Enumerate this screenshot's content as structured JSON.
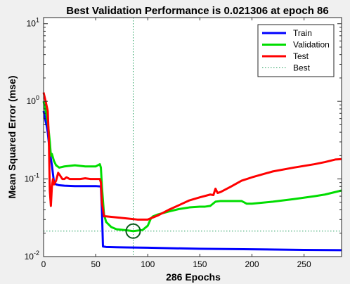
{
  "chart_data": {
    "type": "line",
    "title": "Best Validation Performance is 0.021306 at epoch 86",
    "xlabel": "286 Epochs",
    "ylabel": "Mean Squared Error  (mse)",
    "xlim": [
      0,
      286
    ],
    "ylim": [
      0.01,
      12
    ],
    "yscale": "log",
    "x_ticks": [
      0,
      50,
      100,
      150,
      200,
      250
    ],
    "y_ticks": [
      {
        "value": 0.01,
        "base": "10",
        "exp": "-2"
      },
      {
        "value": 0.1,
        "base": "10",
        "exp": "-1"
      },
      {
        "value": 1,
        "base": "10",
        "exp": "0"
      },
      {
        "value": 10,
        "base": "10",
        "exp": "1"
      }
    ],
    "grid": false,
    "legend_position": "top-right",
    "series": [
      {
        "name": "Train",
        "color": "#0000ff",
        "x": [
          0,
          1,
          2,
          3,
          4,
          6,
          8,
          10,
          12,
          15,
          20,
          30,
          40,
          50,
          55,
          56,
          57,
          60,
          70,
          80,
          100,
          150,
          200,
          250,
          286
        ],
        "y": [
          0.75,
          0.65,
          0.55,
          0.48,
          0.4,
          0.22,
          0.15,
          0.09,
          0.085,
          0.083,
          0.082,
          0.081,
          0.081,
          0.081,
          0.08,
          0.04,
          0.0135,
          0.0133,
          0.0132,
          0.0131,
          0.013,
          0.0126,
          0.0124,
          0.0122,
          0.0121
        ]
      },
      {
        "name": "Validation",
        "color": "#00dd00",
        "x": [
          0,
          2,
          4,
          6,
          7,
          8,
          10,
          12,
          15,
          20,
          30,
          40,
          50,
          54,
          55,
          56,
          58,
          60,
          65,
          70,
          80,
          86,
          95,
          100,
          103,
          105,
          110,
          120,
          130,
          140,
          150,
          155,
          160,
          165,
          170,
          180,
          190,
          195,
          200,
          220,
          240,
          260,
          270,
          286
        ],
        "y": [
          1.0,
          0.75,
          0.55,
          0.3,
          0.2,
          0.21,
          0.17,
          0.15,
          0.14,
          0.145,
          0.15,
          0.145,
          0.145,
          0.155,
          0.14,
          0.08,
          0.035,
          0.028,
          0.024,
          0.0225,
          0.0218,
          0.0213,
          0.022,
          0.025,
          0.031,
          0.033,
          0.035,
          0.038,
          0.041,
          0.043,
          0.044,
          0.044,
          0.045,
          0.051,
          0.052,
          0.052,
          0.052,
          0.048,
          0.048,
          0.051,
          0.055,
          0.06,
          0.063,
          0.071
        ]
      },
      {
        "name": "Test",
        "color": "#ff0000",
        "x": [
          0,
          2,
          4,
          5,
          6,
          7,
          8,
          9,
          10,
          12,
          14,
          16,
          18,
          20,
          22,
          25,
          30,
          35,
          40,
          45,
          50,
          54,
          55,
          56,
          58,
          60,
          70,
          80,
          90,
          100,
          110,
          120,
          130,
          140,
          150,
          160,
          163,
          165,
          167,
          170,
          180,
          190,
          200,
          220,
          240,
          260,
          270,
          280,
          286
        ],
        "y": [
          1.3,
          1.0,
          0.75,
          0.35,
          0.07,
          0.045,
          0.08,
          0.1,
          0.085,
          0.095,
          0.12,
          0.11,
          0.1,
          0.1,
          0.105,
          0.1,
          0.1,
          0.1,
          0.102,
          0.1,
          0.1,
          0.1,
          0.09,
          0.05,
          0.033,
          0.033,
          0.032,
          0.031,
          0.03,
          0.03,
          0.034,
          0.04,
          0.046,
          0.053,
          0.058,
          0.063,
          0.062,
          0.075,
          0.066,
          0.068,
          0.08,
          0.095,
          0.105,
          0.125,
          0.14,
          0.155,
          0.165,
          0.178,
          0.18
        ]
      },
      {
        "name": "Best",
        "color": "#1f9e5a",
        "style": "dotted",
        "best_epoch": 86,
        "best_value": 0.021306
      }
    ]
  }
}
